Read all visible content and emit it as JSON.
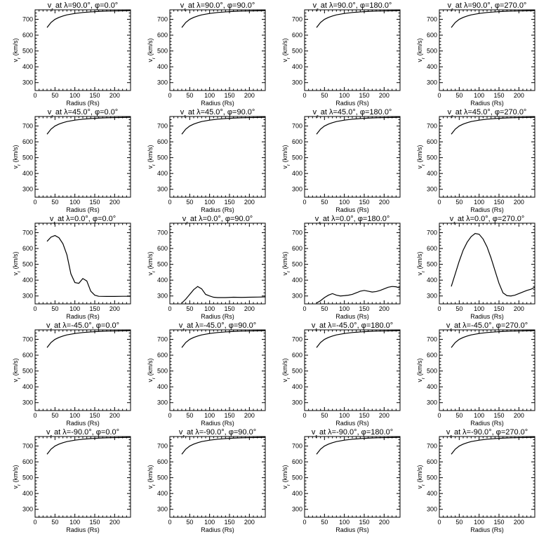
{
  "chart_data": {
    "type": "line",
    "layout": {
      "rows": 5,
      "cols": 4
    },
    "xlabel": "Radius (Rs)",
    "ylabel": "v<sub>r</sub> (km/s)",
    "xlim": [
      0,
      240
    ],
    "ylim": [
      250,
      760
    ],
    "xticks": [
      0,
      50,
      100,
      150,
      200
    ],
    "yticks": [
      300,
      400,
      500,
      600,
      700
    ],
    "lambda_labels": [
      "90.0",
      "45.0",
      "0.0",
      "-45.0",
      "-90.0"
    ],
    "phi_labels": [
      "0.0",
      "90.0",
      "180.0",
      "270.0"
    ],
    "title_template": "v<sub>r</sub> at λ={lambda}°, φ={phi}°",
    "panels": [
      [
        {
          "x": [
            30,
            40,
            50,
            60,
            70,
            80,
            100,
            120,
            140,
            160,
            180,
            200,
            220,
            240
          ],
          "y": [
            648,
            680,
            700,
            712,
            721,
            728,
            737,
            743,
            747,
            750,
            752,
            753,
            754,
            755
          ]
        },
        {
          "x": [
            30,
            40,
            50,
            60,
            70,
            80,
            100,
            120,
            140,
            160,
            180,
            200,
            220,
            240
          ],
          "y": [
            648,
            680,
            700,
            712,
            721,
            728,
            737,
            743,
            747,
            750,
            752,
            753,
            754,
            755
          ]
        },
        {
          "x": [
            30,
            40,
            50,
            60,
            70,
            80,
            100,
            120,
            140,
            160,
            180,
            200,
            220,
            240
          ],
          "y": [
            648,
            680,
            700,
            712,
            721,
            728,
            737,
            743,
            747,
            750,
            752,
            753,
            754,
            755
          ]
        },
        {
          "x": [
            30,
            40,
            50,
            60,
            70,
            80,
            100,
            120,
            140,
            160,
            180,
            200,
            220,
            240
          ],
          "y": [
            648,
            680,
            700,
            712,
            721,
            728,
            737,
            743,
            747,
            750,
            752,
            753,
            754,
            755
          ]
        }
      ],
      [
        {
          "x": [
            30,
            40,
            50,
            60,
            70,
            80,
            100,
            120,
            140,
            160,
            180,
            200,
            220,
            240
          ],
          "y": [
            648,
            680,
            700,
            712,
            721,
            728,
            737,
            743,
            747,
            750,
            752,
            753,
            754,
            755
          ]
        },
        {
          "x": [
            30,
            40,
            50,
            60,
            70,
            80,
            100,
            120,
            140,
            160,
            180,
            200,
            220,
            240
          ],
          "y": [
            648,
            680,
            700,
            712,
            721,
            728,
            737,
            743,
            747,
            750,
            752,
            753,
            754,
            755
          ]
        },
        {
          "x": [
            30,
            40,
            50,
            60,
            70,
            80,
            100,
            120,
            140,
            160,
            180,
            200,
            220,
            240
          ],
          "y": [
            648,
            680,
            700,
            712,
            721,
            728,
            737,
            743,
            747,
            750,
            752,
            753,
            754,
            755
          ]
        },
        {
          "x": [
            30,
            40,
            50,
            60,
            70,
            80,
            100,
            120,
            140,
            160,
            180,
            200,
            220,
            240
          ],
          "y": [
            648,
            680,
            700,
            712,
            721,
            728,
            737,
            743,
            747,
            750,
            752,
            753,
            754,
            755
          ]
        }
      ],
      [
        {
          "x": [
            30,
            40,
            50,
            60,
            70,
            80,
            90,
            100,
            110,
            120,
            130,
            140,
            150,
            160,
            180,
            200,
            220,
            240
          ],
          "y": [
            645,
            672,
            682,
            668,
            630,
            560,
            440,
            385,
            380,
            410,
            395,
            330,
            305,
            298,
            297,
            297,
            298,
            298
          ]
        },
        {
          "x": [
            30,
            40,
            50,
            60,
            70,
            80,
            90,
            100,
            110,
            120,
            140,
            160,
            180,
            200,
            220,
            240
          ],
          "y": [
            255,
            280,
            310,
            340,
            360,
            345,
            310,
            300,
            292,
            290,
            290,
            292,
            291,
            292,
            293,
            294
          ]
        },
        {
          "x": [
            30,
            40,
            50,
            60,
            70,
            80,
            90,
            100,
            110,
            120,
            130,
            140,
            150,
            160,
            170,
            180,
            190,
            200,
            210,
            220,
            230,
            240
          ],
          "y": [
            255,
            270,
            290,
            305,
            315,
            305,
            300,
            302,
            305,
            310,
            320,
            330,
            335,
            330,
            325,
            328,
            335,
            345,
            355,
            360,
            358,
            350
          ]
        },
        {
          "x": [
            30,
            40,
            50,
            60,
            70,
            80,
            90,
            100,
            110,
            120,
            130,
            140,
            150,
            160,
            170,
            180,
            190,
            200,
            210,
            220,
            230,
            240
          ],
          "y": [
            360,
            440,
            520,
            590,
            640,
            675,
            695,
            690,
            660,
            610,
            540,
            460,
            380,
            320,
            302,
            300,
            305,
            315,
            325,
            335,
            342,
            355
          ]
        }
      ],
      [
        {
          "x": [
            30,
            40,
            50,
            60,
            70,
            80,
            100,
            120,
            140,
            160,
            180,
            200,
            220,
            240
          ],
          "y": [
            648,
            680,
            700,
            712,
            721,
            728,
            737,
            743,
            747,
            750,
            752,
            753,
            754,
            755
          ]
        },
        {
          "x": [
            30,
            40,
            50,
            60,
            70,
            80,
            100,
            120,
            140,
            160,
            180,
            200,
            220,
            240
          ],
          "y": [
            648,
            680,
            700,
            712,
            721,
            728,
            737,
            743,
            747,
            750,
            752,
            753,
            754,
            755
          ]
        },
        {
          "x": [
            30,
            40,
            50,
            60,
            70,
            80,
            100,
            120,
            140,
            160,
            180,
            200,
            220,
            240
          ],
          "y": [
            648,
            680,
            700,
            712,
            721,
            728,
            737,
            743,
            747,
            750,
            752,
            753,
            754,
            755
          ]
        },
        {
          "x": [
            30,
            40,
            50,
            60,
            70,
            80,
            100,
            120,
            140,
            160,
            180,
            200,
            220,
            240
          ],
          "y": [
            648,
            680,
            700,
            712,
            721,
            728,
            737,
            743,
            747,
            750,
            752,
            753,
            754,
            755
          ]
        }
      ],
      [
        {
          "x": [
            30,
            40,
            50,
            60,
            70,
            80,
            100,
            120,
            140,
            160,
            180,
            200,
            220,
            240
          ],
          "y": [
            648,
            680,
            700,
            712,
            721,
            728,
            737,
            743,
            747,
            750,
            752,
            753,
            754,
            755
          ]
        },
        {
          "x": [
            30,
            40,
            50,
            60,
            70,
            80,
            100,
            120,
            140,
            160,
            180,
            200,
            220,
            240
          ],
          "y": [
            648,
            680,
            700,
            712,
            721,
            728,
            737,
            743,
            747,
            750,
            752,
            753,
            754,
            755
          ]
        },
        {
          "x": [
            30,
            40,
            50,
            60,
            70,
            80,
            100,
            120,
            140,
            160,
            180,
            200,
            220,
            240
          ],
          "y": [
            648,
            680,
            700,
            712,
            721,
            728,
            737,
            743,
            747,
            750,
            752,
            753,
            754,
            755
          ]
        },
        {
          "x": [
            30,
            40,
            50,
            60,
            70,
            80,
            100,
            120,
            140,
            160,
            180,
            200,
            220,
            240
          ],
          "y": [
            648,
            680,
            700,
            712,
            721,
            728,
            737,
            743,
            747,
            750,
            752,
            753,
            754,
            755
          ]
        }
      ]
    ]
  }
}
